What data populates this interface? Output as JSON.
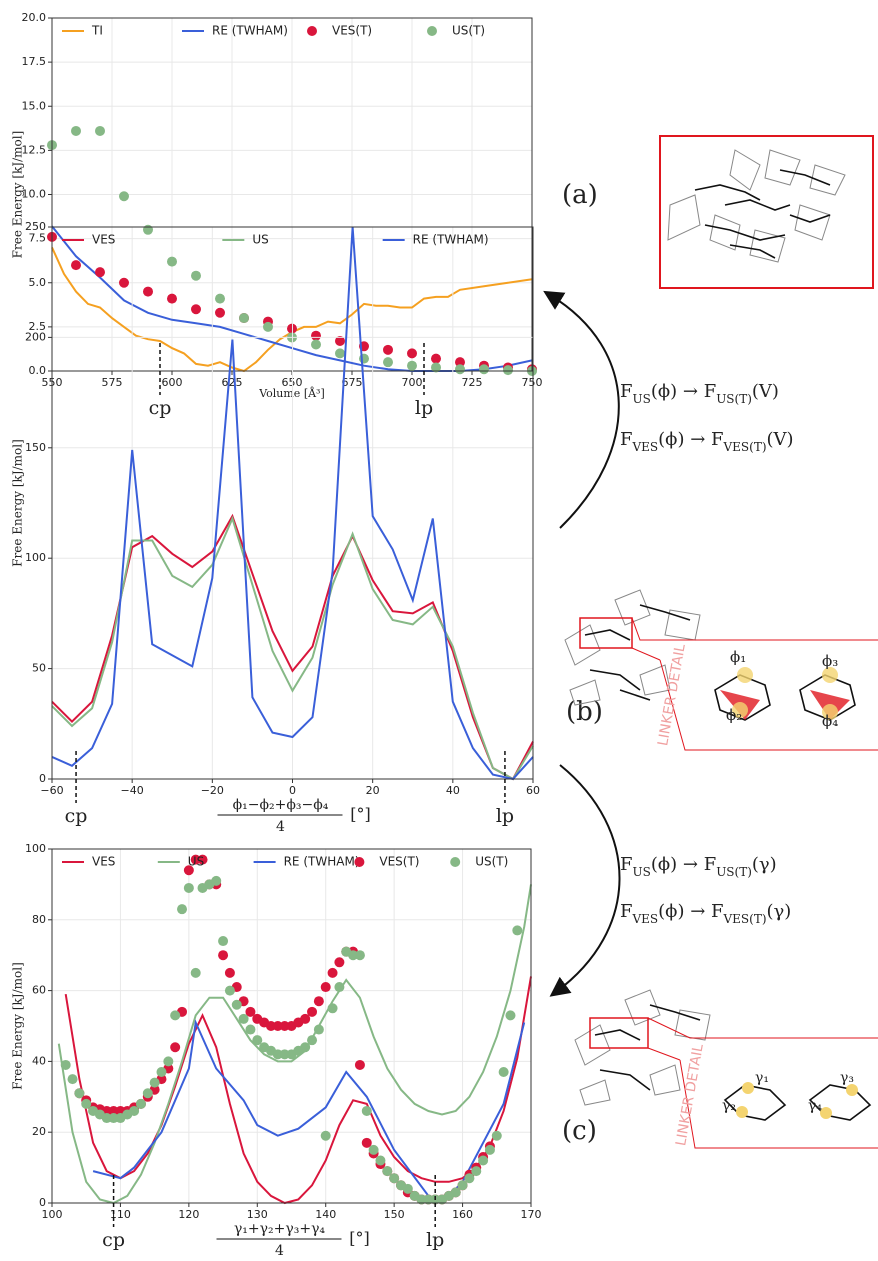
{
  "chart_data": [
    {
      "type": "line",
      "ylabel": "Free Energy [kJ/mol]",
      "xlabel": "Volume [Å³]",
      "xlim": [
        550,
        750
      ],
      "ylim": [
        0,
        20
      ],
      "grid": true,
      "legend": "top",
      "xticks": [
        550,
        575,
        600,
        625,
        650,
        675,
        700,
        725,
        750
      ],
      "yticks": [
        {
          "value": 0,
          "label": "0.0"
        },
        {
          "value": 2.5,
          "label": "2.5"
        },
        {
          "value": 5,
          "label": "5.0"
        },
        {
          "value": 7.5,
          "label": "7.5"
        },
        {
          "value": 10,
          "label": "10.0"
        },
        {
          "value": 12.5,
          "label": "12.5"
        },
        {
          "value": 15,
          "label": "15.0"
        },
        {
          "value": 17.5,
          "label": "17.5"
        },
        {
          "value": 20,
          "label": "20.0"
        }
      ],
      "markers": [
        {
          "label": "cp",
          "x": 595
        },
        {
          "label": "lp",
          "x": 705
        }
      ],
      "series": [
        {
          "name": "TI",
          "color": "#f5a020",
          "kind": "line",
          "x": [
            550,
            555,
            560,
            565,
            570,
            575,
            580,
            585,
            590,
            595,
            600,
            605,
            610,
            615,
            620,
            625,
            630,
            635,
            640,
            645,
            650,
            655,
            660,
            665,
            670,
            675,
            680,
            685,
            690,
            695,
            700,
            705,
            710,
            715,
            720,
            730,
            740,
            750
          ],
          "values": [
            7.0,
            5.5,
            4.5,
            3.8,
            3.6,
            3.0,
            2.5,
            2.0,
            1.8,
            1.7,
            1.3,
            1.0,
            0.4,
            0.3,
            0.5,
            0.2,
            0.0,
            0.5,
            1.2,
            1.8,
            2.2,
            2.5,
            2.5,
            2.8,
            2.7,
            3.2,
            3.8,
            3.7,
            3.7,
            3.6,
            3.6,
            4.1,
            4.2,
            4.2,
            4.6,
            4.8,
            5.0,
            5.2
          ]
        },
        {
          "name": "RE (TWHAM)",
          "color": "#3a5fd9",
          "kind": "line",
          "x": [
            550,
            560,
            570,
            580,
            590,
            600,
            610,
            620,
            630,
            640,
            650,
            660,
            670,
            680,
            690,
            700,
            710,
            720,
            730,
            740,
            750
          ],
          "values": [
            8.2,
            6.5,
            5.3,
            4.0,
            3.3,
            2.9,
            2.7,
            2.5,
            2.1,
            1.7,
            1.3,
            0.9,
            0.6,
            0.3,
            0.1,
            0.0,
            0.0,
            0.0,
            0.1,
            0.3,
            0.6
          ]
        },
        {
          "name": "VES(T)",
          "color": "#d9163c",
          "kind": "scatter",
          "x": [
            550,
            560,
            570,
            580,
            590,
            600,
            610,
            620,
            630,
            640,
            650,
            660,
            670,
            680,
            690,
            700,
            710,
            720,
            730,
            740,
            750
          ],
          "values": [
            7.6,
            6.0,
            5.6,
            5.0,
            4.5,
            4.1,
            3.5,
            3.3,
            3.0,
            2.8,
            2.4,
            2.0,
            1.7,
            1.4,
            1.2,
            1.0,
            0.7,
            0.5,
            0.3,
            0.2,
            0.1
          ]
        },
        {
          "name": "US(T)",
          "color": "#86b886",
          "kind": "scatter",
          "x": [
            550,
            560,
            570,
            580,
            590,
            600,
            610,
            620,
            630,
            640,
            650,
            660,
            670,
            680,
            690,
            700,
            710,
            720,
            730,
            740,
            750
          ],
          "values": [
            12.8,
            13.6,
            13.6,
            9.9,
            8.0,
            6.2,
            5.4,
            4.1,
            3.0,
            2.5,
            1.9,
            1.5,
            1.0,
            0.7,
            0.5,
            0.3,
            0.2,
            0.1,
            0.1,
            0.05,
            0.0
          ]
        }
      ]
    },
    {
      "type": "line",
      "ylabel": "Free Energy [kJ/mol]",
      "xlabel": {
        "numerator": "ϕ₁−ϕ₂+ϕ₃−ϕ₄",
        "denominator": "4",
        "unit": "[°]"
      },
      "xlim": [
        -60,
        60
      ],
      "ylim": [
        0,
        250
      ],
      "grid": true,
      "legend": "top",
      "xticks": [
        {
          "value": -60,
          "label": "−60"
        },
        {
          "value": -40,
          "label": "−40"
        },
        {
          "value": -20,
          "label": "−20"
        },
        0,
        20,
        40,
        60
      ],
      "yticks": [
        0,
        50,
        100,
        150,
        200,
        250
      ],
      "markers": [
        {
          "label": "cp",
          "x": -54
        },
        {
          "label": "lp",
          "x": 53
        }
      ],
      "series": [
        {
          "name": "VES",
          "color": "#d9163c",
          "kind": "line",
          "x": [
            -60,
            -55,
            -50,
            -45,
            -40,
            -35,
            -30,
            -25,
            -20,
            -15,
            -10,
            -5,
            0,
            5,
            10,
            15,
            20,
            25,
            30,
            35,
            40,
            45,
            50,
            55,
            60
          ],
          "values": [
            35,
            26,
            35,
            65,
            105,
            110,
            102,
            96,
            103,
            119,
            93,
            67,
            49,
            60,
            92,
            110,
            90,
            76,
            75,
            80,
            58,
            28,
            5,
            0,
            17
          ]
        },
        {
          "name": "US",
          "color": "#86b886",
          "kind": "line",
          "x": [
            -60,
            -55,
            -50,
            -45,
            -40,
            -35,
            -30,
            -25,
            -20,
            -15,
            -10,
            -5,
            0,
            5,
            10,
            15,
            20,
            25,
            30,
            35,
            40,
            45,
            50,
            55,
            60
          ],
          "values": [
            33,
            24,
            32,
            62,
            108,
            108,
            92,
            87,
            97,
            118,
            88,
            58,
            40,
            55,
            88,
            111,
            86,
            72,
            70,
            78,
            60,
            30,
            5,
            0,
            15
          ]
        },
        {
          "name": "RE (TWHAM)",
          "color": "#3a5fd9",
          "kind": "line",
          "x": [
            -60,
            -55,
            -50,
            -45,
            -40,
            -35,
            -25,
            -20,
            -15,
            -10,
            -5,
            0,
            5,
            10,
            15,
            20,
            25,
            30,
            35,
            40,
            45,
            50,
            55,
            60
          ],
          "values": [
            10,
            6,
            14,
            34,
            149,
            61,
            51,
            91,
            199,
            37,
            21,
            19,
            28,
            94,
            250,
            119,
            104,
            81,
            118,
            35,
            14,
            2,
            0,
            10
          ]
        }
      ]
    },
    {
      "type": "line",
      "ylabel": "Free Energy [kJ/mol]",
      "xlabel": {
        "numerator": "γ₁+γ₂+γ₃+γ₄",
        "denominator": "4",
        "unit": "[°]"
      },
      "xlim": [
        100,
        170
      ],
      "ylim": [
        0,
        100
      ],
      "grid": true,
      "legend": "top",
      "xticks": [
        100,
        110,
        120,
        130,
        140,
        150,
        160,
        170
      ],
      "yticks": [
        0,
        20,
        40,
        60,
        80,
        100
      ],
      "markers": [
        {
          "label": "cp",
          "x": 109
        },
        {
          "label": "lp",
          "x": 156
        }
      ],
      "series": [
        {
          "name": "VES",
          "color": "#d9163c",
          "kind": "line",
          "x": [
            102,
            104,
            106,
            108,
            110,
            112,
            114,
            116,
            118,
            120,
            122,
            124,
            126,
            128,
            130,
            132,
            134,
            136,
            138,
            140,
            142,
            144,
            146,
            148,
            150,
            152,
            154,
            156,
            158,
            160,
            162,
            164,
            166,
            168,
            170
          ],
          "values": [
            59,
            35,
            17,
            9,
            7,
            9,
            14,
            22,
            33,
            45,
            53,
            44,
            28,
            14,
            6,
            2,
            0,
            1,
            5,
            12,
            22,
            29,
            28,
            19,
            13,
            9,
            7,
            6,
            6,
            7,
            10,
            16,
            26,
            41,
            64
          ]
        },
        {
          "name": "US",
          "color": "#86b886",
          "kind": "line",
          "x": [
            101,
            103,
            105,
            107,
            109,
            111,
            113,
            115,
            117,
            119,
            121,
            123,
            125,
            127,
            129,
            131,
            133,
            135,
            137,
            139,
            141,
            143,
            145,
            147,
            149,
            151,
            153,
            155,
            157,
            159,
            161,
            163,
            165,
            167,
            169,
            170
          ],
          "values": [
            45,
            20,
            6,
            1,
            0,
            2,
            8,
            17,
            28,
            40,
            53,
            58,
            58,
            52,
            46,
            42,
            40,
            40,
            43,
            50,
            57,
            63,
            58,
            47,
            38,
            32,
            28,
            26,
            25,
            26,
            30,
            37,
            47,
            60,
            78,
            90
          ]
        },
        {
          "name": "RE (TWHAM)",
          "color": "#3a5fd9",
          "kind": "line",
          "x": [
            106,
            110,
            112,
            116,
            120,
            121,
            124,
            128,
            130,
            133,
            136,
            140,
            143,
            146,
            150,
            155,
            157,
            160,
            163,
            166,
            169
          ],
          "values": [
            9,
            7,
            10,
            20,
            38,
            51,
            38,
            29,
            22,
            19,
            21,
            27,
            37,
            30,
            15,
            2,
            0,
            6,
            17,
            28,
            51
          ]
        },
        {
          "name": "VES(T)",
          "color": "#d9163c",
          "kind": "scatter",
          "x": [
            104,
            105,
            106,
            107,
            108,
            109,
            110,
            111,
            112,
            113,
            114,
            115,
            116,
            117,
            118,
            119,
            120,
            121,
            122,
            123,
            124,
            125,
            126,
            127,
            128,
            129,
            130,
            131,
            132,
            133,
            134,
            135,
            136,
            137,
            138,
            139,
            140,
            141,
            142,
            143,
            144,
            145,
            146,
            147,
            148,
            149,
            150,
            151,
            152,
            153,
            154,
            155,
            156,
            157,
            158,
            159,
            160,
            161,
            162,
            163,
            164
          ],
          "values": [
            31,
            29,
            27,
            26.5,
            26,
            26,
            26,
            26,
            27,
            28,
            30,
            32,
            35,
            38,
            44,
            54,
            94,
            97,
            97,
            90,
            90,
            70,
            65,
            61,
            57,
            54,
            52,
            51,
            50,
            50,
            50,
            50,
            51,
            52,
            54,
            57,
            61,
            65,
            68,
            71,
            71,
            39,
            17,
            14,
            11,
            9,
            7,
            5,
            3,
            2,
            1,
            1,
            1,
            1,
            2,
            3,
            5,
            8,
            10,
            13,
            16
          ]
        },
        {
          "name": "US(T)",
          "color": "#86b886",
          "kind": "scatter",
          "x": [
            102,
            103,
            104,
            105,
            106,
            107,
            108,
            109,
            110,
            111,
            112,
            113,
            114,
            115,
            116,
            117,
            118,
            119,
            120,
            121,
            122,
            123,
            124,
            125,
            126,
            127,
            128,
            129,
            130,
            131,
            132,
            133,
            134,
            135,
            136,
            137,
            138,
            139,
            140,
            141,
            142,
            143,
            144,
            145,
            146,
            147,
            148,
            149,
            150,
            151,
            152,
            153,
            154,
            155,
            156,
            157,
            158,
            159,
            160,
            161,
            162,
            163,
            164,
            165,
            166,
            167,
            168
          ],
          "values": [
            39,
            35,
            31,
            28,
            26,
            25,
            24,
            24,
            24,
            25,
            26,
            28,
            31,
            34,
            37,
            40,
            53,
            83,
            89,
            65,
            89,
            90,
            91,
            74,
            60,
            56,
            52,
            49,
            46,
            44,
            43,
            42,
            42,
            42,
            43,
            44,
            46,
            49,
            19,
            55,
            61,
            71,
            70,
            70,
            26,
            15,
            12,
            9,
            7,
            5,
            4,
            2,
            1,
            1,
            1,
            1,
            2,
            3,
            5,
            7,
            9,
            12,
            15,
            19,
            37,
            53,
            77
          ]
        }
      ]
    }
  ],
  "diagram": {
    "panels": [
      "(a)",
      "(b)",
      "(c)"
    ],
    "equations": [
      [
        {
          "t": "F"
        },
        {
          "sub": "US"
        },
        {
          "t": "(ϕ) → "
        },
        {
          "t": "F"
        },
        {
          "sub": "US(T)"
        },
        {
          "t": "(V)"
        }
      ],
      [
        {
          "t": "F"
        },
        {
          "sub": "VES"
        },
        {
          "t": "(ϕ) → "
        },
        {
          "t": "F"
        },
        {
          "sub": "VES(T)"
        },
        {
          "t": "(V)"
        }
      ],
      [
        {
          "t": "F"
        },
        {
          "sub": "US"
        },
        {
          "t": "(ϕ) → "
        },
        {
          "t": "F"
        },
        {
          "sub": "US(T)"
        },
        {
          "t": "(γ)"
        }
      ],
      [
        {
          "t": "F"
        },
        {
          "sub": "VES"
        },
        {
          "t": "(ϕ) → "
        },
        {
          "t": "F"
        },
        {
          "sub": "VES(T)"
        },
        {
          "t": "(γ)"
        }
      ]
    ],
    "linker_b": {
      "title": "LINKER DETAIL",
      "labels": [
        "ϕ₁",
        "ϕ₂",
        "ϕ₃",
        "ϕ₄"
      ]
    },
    "linker_c": {
      "title": "LINKER DETAIL",
      "labels": [
        "γ₁",
        "γ₂",
        "γ₃",
        "γ₄"
      ]
    }
  }
}
